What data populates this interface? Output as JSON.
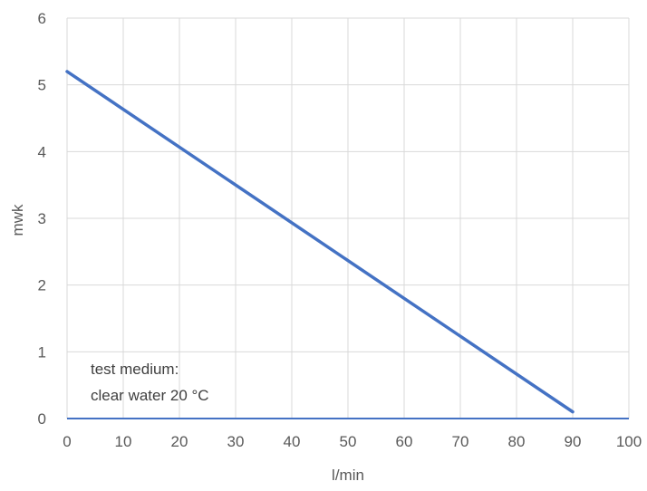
{
  "chart_data": {
    "type": "line",
    "title": "",
    "xlabel": "l/min",
    "ylabel": "mwk",
    "xlim": [
      0,
      100
    ],
    "ylim": [
      0,
      6
    ],
    "x_ticks": [
      0,
      10,
      20,
      30,
      40,
      50,
      60,
      70,
      80,
      90,
      100
    ],
    "y_ticks": [
      0,
      1,
      2,
      3,
      4,
      5,
      6
    ],
    "grid": true,
    "series": [
      {
        "name": "",
        "color": "#4472c4",
        "x": [
          0,
          90
        ],
        "y": [
          5.2,
          0.1
        ]
      }
    ],
    "annotation": {
      "line1": "test medium:",
      "line2": "clear water 20 °C"
    }
  }
}
